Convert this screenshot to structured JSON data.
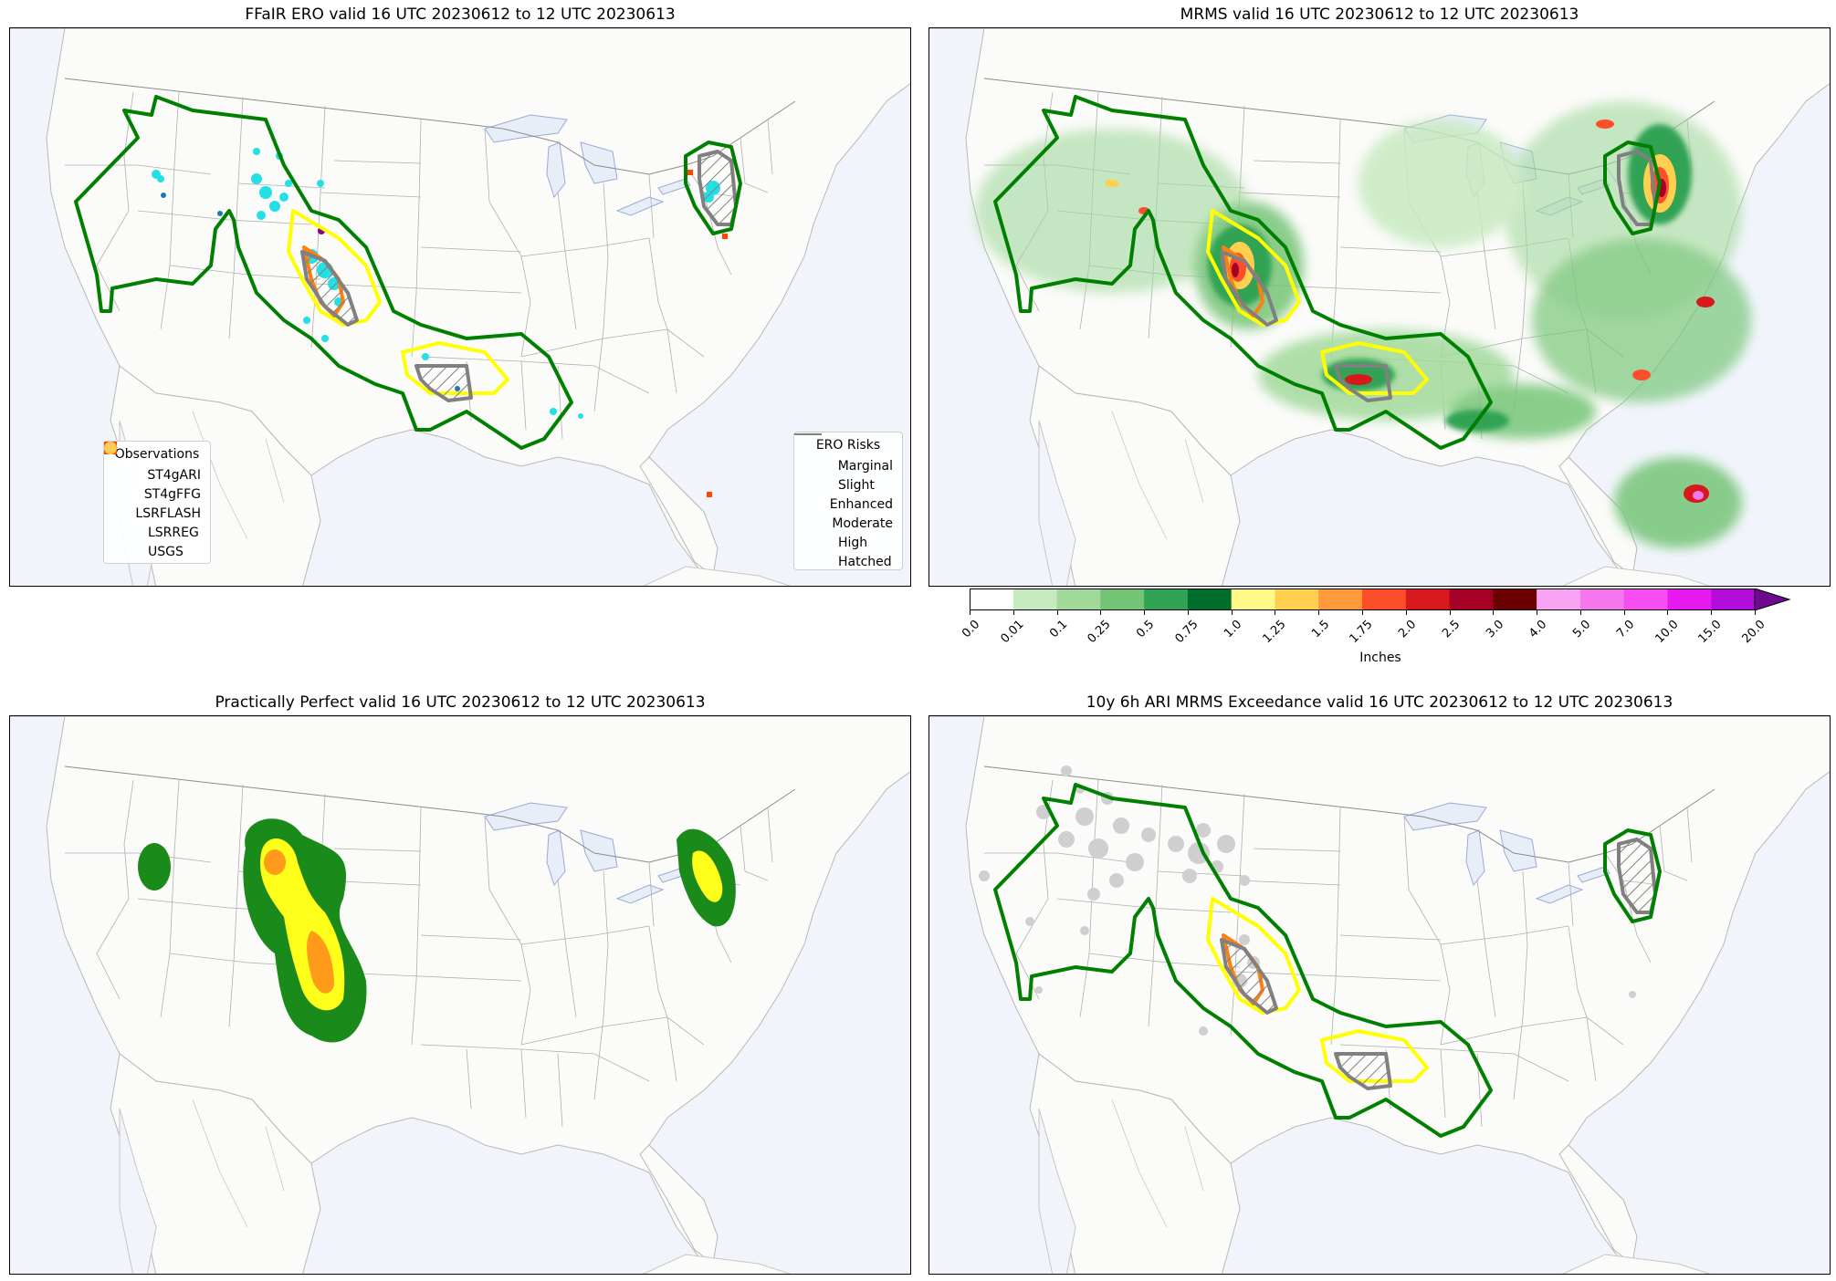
{
  "panels": [
    {
      "id": "ero",
      "title": "FFaIR ERO valid 16 UTC 20230612 to 12 UTC 20230613"
    },
    {
      "id": "mrms",
      "title": "MRMS valid 16 UTC 20230612 to 12 UTC 20230613"
    },
    {
      "id": "pp",
      "title": "Practically Perfect valid 16 UTC 20230612 to 12 UTC 20230613"
    },
    {
      "id": "ari",
      "title": "10y 6h ARI MRMS Exceedance valid 16 UTC 20230612 to 12 UTC 20230613"
    }
  ],
  "obs_legend": {
    "title": "Observations",
    "items": [
      {
        "label": "ST4gARI",
        "icon": "star-icon",
        "color": "#1f77b4"
      },
      {
        "label": "ST4gFFG",
        "icon": "star-icon",
        "color": "#22e0e6"
      },
      {
        "label": "LSRFLASH",
        "icon": "x-mark-icon",
        "color": "#8b008b"
      },
      {
        "label": "LSRREG",
        "icon": "square-icon",
        "color": "#ff4500"
      },
      {
        "label": "USGS",
        "icon": "circle-icon",
        "color": "#ffcc55"
      }
    ]
  },
  "ero_legend": {
    "title": "ERO Risks",
    "items": [
      {
        "label": "Marginal",
        "color": "#008000"
      },
      {
        "label": "Slight",
        "color": "#ffff00"
      },
      {
        "label": "Enhanced",
        "color": "#ff7f0e"
      },
      {
        "label": "Moderate",
        "color": "#e31a1c"
      },
      {
        "label": "High",
        "color": "#e000e0"
      },
      {
        "label": "Hatched",
        "color": "#808080"
      }
    ]
  },
  "colorbar": {
    "label": "Inches",
    "ticks": [
      "0.0",
      "0.01",
      "0.1",
      "0.25",
      "0.5",
      "0.75",
      "1.0",
      "1.25",
      "1.5",
      "1.75",
      "2.0",
      "2.5",
      "3.0",
      "4.0",
      "5.0",
      "7.0",
      "10.0",
      "15.0",
      "20.0"
    ],
    "colors": [
      "#ffffff",
      "#c7e9c0",
      "#a1d99b",
      "#74c476",
      "#31a354",
      "#006d2c",
      "#fff98a",
      "#ffd04f",
      "#fe9a3c",
      "#fc4e2a",
      "#d7191c",
      "#a50026",
      "#6b0000",
      "#f9a3f4",
      "#f577ee",
      "#f74ef2",
      "#e619ef",
      "#b20ddb",
      "#6d0a8f"
    ]
  },
  "colors": {
    "marginal": "#008000",
    "slight": "#ffff00",
    "enhanced": "#ff7f0e",
    "hatched": "#808080",
    "ocean": "#f1f5fb",
    "land": "#fbfbf9",
    "pp_green": "#1a8a1a",
    "pp_yellow": "#ffff1a",
    "pp_orange": "#ff9a1a"
  }
}
